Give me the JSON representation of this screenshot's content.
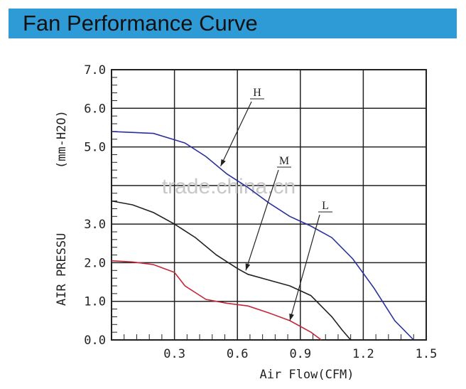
{
  "header": {
    "title": "Fan Performance Curve"
  },
  "watermark": "trade.china.cn",
  "chart_data": {
    "type": "line",
    "title": "",
    "xlabel": "Air Flow(CFM)",
    "ylabel_main": "AIR PRESSU",
    "ylabel_unit": "(mm-H2O)",
    "xlim": [
      0,
      1.5
    ],
    "ylim": [
      0,
      7
    ],
    "grid": true,
    "xticks": [
      "0.3",
      "0.6",
      "0.9",
      "1.2",
      "1.5"
    ],
    "yticks": [
      "0.0",
      "1.0",
      "2.0",
      "3.0",
      "5.0",
      "6.0",
      "7.0"
    ],
    "ytick_values": [
      0,
      1,
      2,
      3,
      5,
      6,
      7
    ],
    "series": [
      {
        "name": "H",
        "color": "#2b2f9e",
        "x": [
          0.0,
          0.2,
          0.35,
          0.45,
          0.55,
          0.65,
          0.75,
          0.85,
          0.95,
          1.05,
          1.15,
          1.25,
          1.35,
          1.44
        ],
        "y": [
          5.4,
          5.35,
          5.1,
          4.75,
          4.3,
          3.95,
          3.55,
          3.2,
          2.95,
          2.65,
          2.1,
          1.35,
          0.5,
          0.0
        ]
      },
      {
        "name": "M",
        "color": "#222222",
        "x": [
          0.0,
          0.1,
          0.2,
          0.3,
          0.4,
          0.5,
          0.6,
          0.65,
          0.75,
          0.85,
          0.95,
          1.05,
          1.1,
          1.14
        ],
        "y": [
          3.6,
          3.5,
          3.3,
          3.0,
          2.65,
          2.2,
          1.85,
          1.7,
          1.55,
          1.4,
          1.15,
          0.6,
          0.25,
          0.0
        ]
      },
      {
        "name": "L",
        "color": "#c4273a",
        "x": [
          0.0,
          0.1,
          0.2,
          0.3,
          0.35,
          0.45,
          0.55,
          0.65,
          0.75,
          0.85,
          0.95,
          1.0
        ],
        "y": [
          2.05,
          2.02,
          1.95,
          1.75,
          1.4,
          1.05,
          0.95,
          0.88,
          0.7,
          0.5,
          0.2,
          0.0
        ]
      }
    ],
    "annotations": [
      {
        "label": "H",
        "target_x": 0.52,
        "target_y": 4.5
      },
      {
        "label": "M",
        "target_x": 0.64,
        "target_y": 1.8
      },
      {
        "label": "L",
        "target_x": 0.85,
        "target_y": 0.5
      }
    ]
  }
}
